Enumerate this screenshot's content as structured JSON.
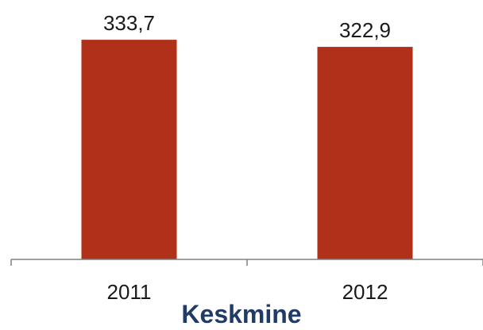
{
  "chart_data": {
    "type": "bar",
    "categories": [
      "2011",
      "2012"
    ],
    "values": [
      333.7,
      322.9
    ],
    "value_labels": [
      "333,7",
      "322,9"
    ],
    "xlabel": "Keskmine",
    "ylabel": "",
    "ylim": [
      0,
      370
    ],
    "grid": false,
    "legend": "none",
    "colors": {
      "bar": "#B03019",
      "axis": "#808080",
      "text": "#1a1a1a",
      "xlabel": "#1F3B66"
    }
  }
}
